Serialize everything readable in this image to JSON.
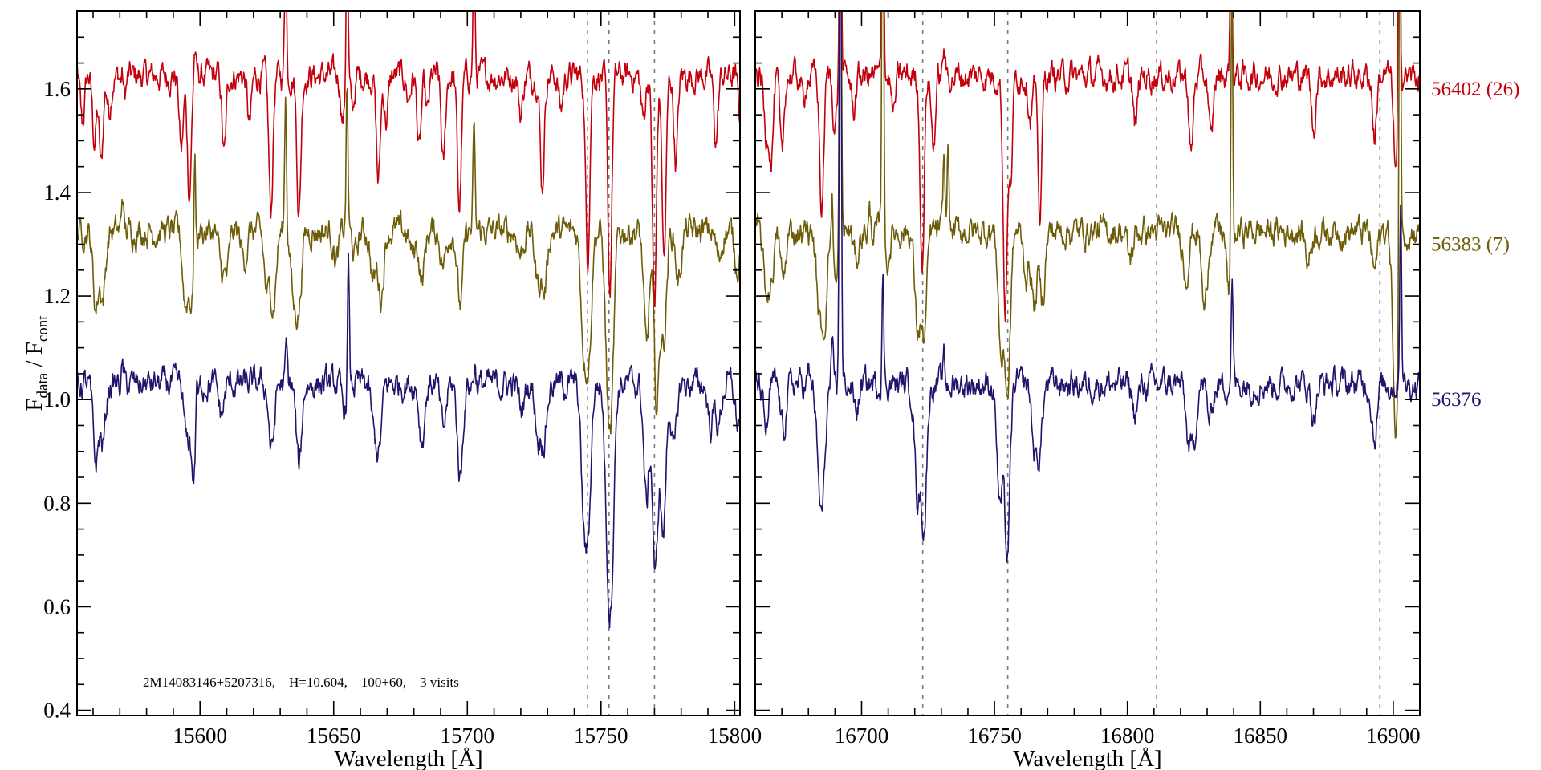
{
  "chart_data": {
    "type": "line",
    "title": "",
    "ylabel": {
      "main": "F",
      "sub1": "data",
      "sep": " / F",
      "sub2": "cont"
    },
    "ylim": [
      0.39,
      1.75
    ],
    "yticks": [
      "0.4",
      "0.6",
      "0.8",
      "1.0",
      "1.2",
      "1.4",
      "1.6"
    ],
    "annotation": "2M14083146+5207316,    H=10.604,    100+60,    3 visits",
    "series_meta": [
      {
        "name": "56402 (26)",
        "color": "#c4000c",
        "continuum": 1.625,
        "sigma": 0.75
      },
      {
        "name": "56383 (7)",
        "color": "#6e5c08",
        "continuum": 1.325,
        "sigma": 1.0
      },
      {
        "name": "56376",
        "color": "#24126c",
        "continuum": 1.03,
        "sigma": 1.0
      }
    ],
    "panels": [
      {
        "xlabel": "Wavelength [Å]",
        "xlim": [
          15554,
          15802
        ],
        "xticks": [
          "15600",
          "15650",
          "15700",
          "15750",
          "15800"
        ],
        "vlines": [
          15745,
          15753,
          15770
        ],
        "series": [
          {
            "absorption": [
              [
                15556,
                1.53
              ],
              [
                15560.5,
                1.5
              ],
              [
                15563,
                1.45
              ],
              [
                15566,
                1.56
              ],
              [
                15571.5,
                1.58
              ],
              [
                15593,
                1.48
              ],
              [
                15596,
                1.4
              ],
              [
                15609,
                1.47
              ],
              [
                15618.5,
                1.53
              ],
              [
                15626.5,
                1.36
              ],
              [
                15637,
                1.36
              ],
              [
                15653.5,
                1.54
              ],
              [
                15657,
                1.56
              ],
              [
                15666.7,
                1.42
              ],
              [
                15669.7,
                1.54
              ],
              [
                15678,
                1.58
              ],
              [
                15682,
                1.48
              ],
              [
                15685,
                1.55
              ],
              [
                15691,
                1.45
              ],
              [
                15697,
                1.37
              ],
              [
                15720,
                1.55
              ],
              [
                15728,
                1.41
              ],
              [
                15735,
                1.56
              ],
              [
                15745,
                1.27
              ],
              [
                15753.3,
                1.21
              ],
              [
                15765.8,
                1.54
              ],
              [
                15770,
                1.17
              ],
              [
                15773.6,
                1.27
              ],
              [
                15778,
                1.46
              ],
              [
                15793,
                1.5
              ],
              [
                15802,
                1.55
              ]
            ],
            "emission": [
              [
                15571,
                1.66
              ],
              [
                15598,
                1.68
              ],
              [
                15632,
                1.9
              ],
              [
                15655,
                1.95
              ],
              [
                15702.5,
                1.9
              ]
            ]
          },
          {
            "absorption": [
              [
                15561,
                1.18
              ],
              [
                15563.7,
                1.2
              ],
              [
                15594.5,
                1.19
              ],
              [
                15597,
                1.19
              ],
              [
                15608,
                1.26
              ],
              [
                15610,
                1.25
              ],
              [
                15616.5,
                1.27
              ],
              [
                15625,
                1.21
              ],
              [
                15627.5,
                1.19
              ],
              [
                15635,
                1.2
              ],
              [
                15637,
                1.19
              ],
              [
                15651,
                1.27
              ],
              [
                15658,
                1.28
              ],
              [
                15664.8,
                1.23
              ],
              [
                15667.7,
                1.2
              ],
              [
                15679.5,
                1.28
              ],
              [
                15683,
                1.23
              ],
              [
                15691,
                1.26
              ],
              [
                15697.3,
                1.18
              ],
              [
                15720,
                1.28
              ],
              [
                15726.3,
                1.23
              ],
              [
                15728.8,
                1.21
              ],
              [
                15743.5,
                1.12
              ],
              [
                15745.5,
                1.1
              ],
              [
                15752.5,
                1.08
              ],
              [
                15754,
                1.05
              ],
              [
                15767,
                1.1
              ],
              [
                15770.8,
                0.99
              ],
              [
                15773.5,
                1.12
              ],
              [
                15779,
                1.23
              ],
              [
                15794,
                1.27
              ],
              [
                15801,
                1.26
              ]
            ],
            "emission": [
              [
                15571,
                1.4
              ],
              [
                15598,
                1.54
              ],
              [
                15632,
                1.59
              ],
              [
                15655,
                1.6
              ],
              [
                15702.5,
                1.53
              ]
            ]
          },
          {
            "absorption": [
              [
                15561,
                0.88
              ],
              [
                15563.7,
                0.92
              ],
              [
                15595,
                0.92
              ],
              [
                15597.7,
                0.85
              ],
              [
                15608,
                0.97
              ],
              [
                15626.8,
                0.9
              ],
              [
                15637,
                0.87
              ],
              [
                15654,
                0.98
              ],
              [
                15665,
                0.95
              ],
              [
                15667,
                0.91
              ],
              [
                15683,
                0.92
              ],
              [
                15691,
                0.94
              ],
              [
                15697.3,
                0.85
              ],
              [
                15720.3,
                0.98
              ],
              [
                15726.5,
                0.93
              ],
              [
                15728.8,
                0.93
              ],
              [
                15743.5,
                0.8
              ],
              [
                15745.3,
                0.78
              ],
              [
                15752.5,
                0.76
              ],
              [
                15754,
                0.72
              ],
              [
                15767,
                0.8
              ],
              [
                15770.3,
                0.66
              ],
              [
                15773.3,
                0.74
              ],
              [
                15777.3,
                0.9
              ],
              [
                15791,
                0.95
              ],
              [
                15794,
                0.95
              ],
              [
                15801.3,
                0.95
              ]
            ],
            "emission": [
              [
                15571,
                1.06
              ],
              [
                15598.7,
                1.13
              ],
              [
                15632.3,
                1.1
              ],
              [
                15655.5,
                1.27
              ],
              [
                15702.8,
                1.07
              ]
            ]
          }
        ]
      },
      {
        "xlabel": "Wavelength [Å]",
        "xlim": [
          16660,
          16910
        ],
        "xticks": [
          "16700",
          "16750",
          "16800",
          "16850",
          "16900"
        ],
        "vlines": [
          16723,
          16755,
          16811,
          16895
        ],
        "series": [
          {
            "absorption": [
              [
                16664,
                1.51
              ],
              [
                16666,
                1.47
              ],
              [
                16670,
                1.46
              ],
              [
                16678,
                1.58
              ],
              [
                16685,
                1.36
              ],
              [
                16690,
                1.53
              ],
              [
                16697,
                1.56
              ],
              [
                16712,
                1.55
              ],
              [
                16722.8,
                1.26
              ],
              [
                16727,
                1.49
              ],
              [
                16754,
                1.18
              ],
              [
                16756,
                1.42
              ],
              [
                16763.5,
                1.55
              ],
              [
                16767,
                1.35
              ],
              [
                16803,
                1.52
              ],
              [
                16824,
                1.47
              ],
              [
                16831.5,
                1.49
              ],
              [
                16870,
                1.52
              ],
              [
                16893,
                1.51
              ],
              [
                16901,
                1.43
              ]
            ],
            "emission": [
              [
                16692,
                2.2
              ],
              [
                16708,
                2.2
              ],
              [
                16731,
                1.68
              ],
              [
                16839,
                2.0
              ],
              [
                16902.3,
                2.2
              ]
            ]
          },
          {
            "absorption": [
              [
                16664,
                1.22
              ],
              [
                16666,
                1.24
              ],
              [
                16670.5,
                1.23
              ],
              [
                16684,
                1.18
              ],
              [
                16686,
                1.16
              ],
              [
                16690.5,
                1.22
              ],
              [
                16698,
                1.27
              ],
              [
                16709.5,
                1.26
              ],
              [
                16721,
                1.14
              ],
              [
                16723.5,
                1.12
              ],
              [
                16752.5,
                1.09
              ],
              [
                16755,
                1.02
              ],
              [
                16762,
                1.24
              ],
              [
                16765,
                1.18
              ],
              [
                16768,
                1.2
              ],
              [
                16801,
                1.27
              ],
              [
                16822,
                1.24
              ],
              [
                16829,
                1.17
              ],
              [
                16838.5,
                1.19
              ],
              [
                16868,
                1.27
              ],
              [
                16893,
                1.25
              ],
              [
                16901,
                0.91
              ]
            ],
            "emission": [
              [
                16689,
                1.42
              ],
              [
                16692,
                2.2
              ],
              [
                16703,
                1.36
              ],
              [
                16708,
                2.2
              ],
              [
                16731,
                1.47
              ],
              [
                16732.5,
                1.49
              ],
              [
                16839.3,
                1.9
              ],
              [
                16902.5,
                2.2
              ]
            ]
          },
          {
            "absorption": [
              [
                16664,
                0.94
              ],
              [
                16670.5,
                0.94
              ],
              [
                16684,
                0.88
              ],
              [
                16685.5,
                0.85
              ],
              [
                16698,
                0.98
              ],
              [
                16721,
                0.82
              ],
              [
                16723.5,
                0.76
              ],
              [
                16752,
                0.8
              ],
              [
                16754.8,
                0.7
              ],
              [
                16765,
                0.91
              ],
              [
                16767,
                0.91
              ],
              [
                16803,
                0.97
              ],
              [
                16823,
                0.92
              ],
              [
                16825,
                0.93
              ],
              [
                16831,
                0.96
              ],
              [
                16870,
                0.97
              ],
              [
                16893,
                0.93
              ]
            ],
            "emission": [
              [
                16680,
                1.05
              ],
              [
                16689,
                1.08
              ],
              [
                16692,
                2.2
              ],
              [
                16708,
                1.23
              ],
              [
                16731,
                1.08
              ],
              [
                16839.4,
                1.22
              ],
              [
                16902.8,
                1.4
              ]
            ]
          }
        ]
      }
    ]
  }
}
